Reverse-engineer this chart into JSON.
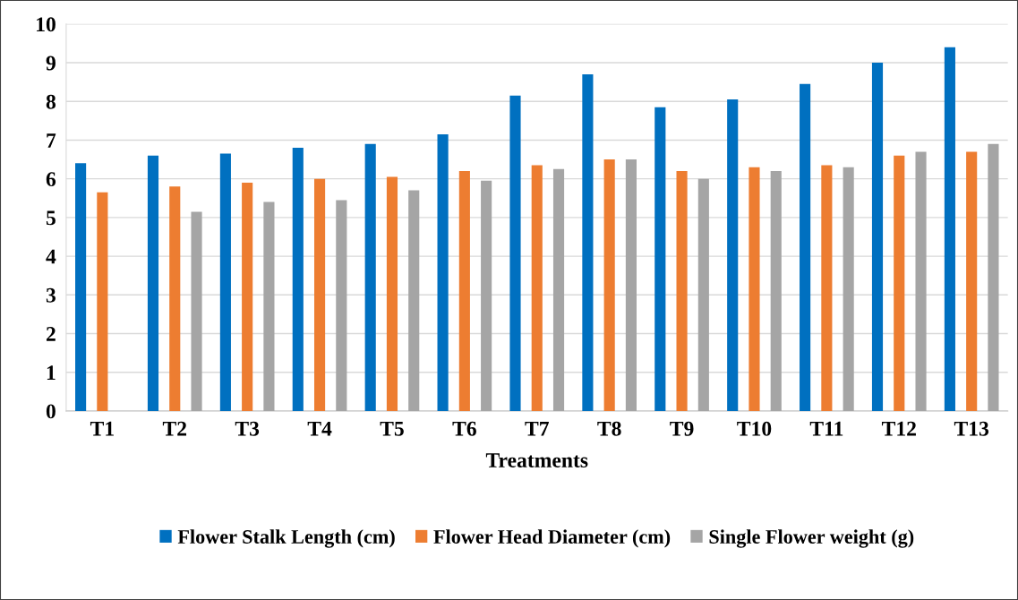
{
  "chart_data": {
    "type": "bar",
    "xlabel": "Treatments",
    "categories": [
      "T1",
      "T2",
      "T3",
      "T4",
      "T5",
      "T6",
      "T7",
      "T8",
      "T9",
      "T10",
      "T11",
      "T12",
      "T13"
    ],
    "series": [
      {
        "name": "Flower Stalk Length (cm)",
        "color": "#0070c0",
        "values": [
          6.4,
          6.6,
          6.65,
          6.8,
          6.9,
          7.15,
          8.15,
          8.7,
          7.85,
          8.05,
          8.45,
          9.0,
          9.4
        ]
      },
      {
        "name": "Flower Head Diameter (cm)",
        "color": "#ed7d31",
        "values": [
          5.65,
          5.8,
          5.9,
          6.0,
          6.05,
          6.2,
          6.35,
          6.5,
          6.2,
          6.3,
          6.35,
          6.6,
          6.7
        ]
      },
      {
        "name": "Single Flower weight (g)",
        "color": "#a5a5a5",
        "values": [
          null,
          5.15,
          5.4,
          5.45,
          5.7,
          5.95,
          6.25,
          6.5,
          6.0,
          6.2,
          6.3,
          6.7,
          6.9
        ]
      }
    ],
    "ylim": [
      0,
      10
    ],
    "yticks": [
      0,
      1,
      2,
      3,
      4,
      5,
      6,
      7,
      8,
      9,
      10
    ],
    "grid": "y",
    "legend": "bottom"
  }
}
